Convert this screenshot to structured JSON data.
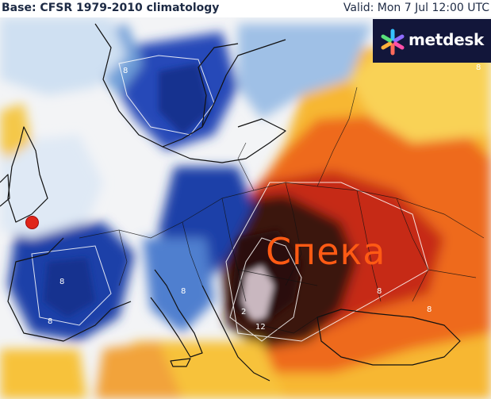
{
  "header": {
    "base_text": "Base: CFSR 1979-2010 climatology",
    "valid_text": "Valid: Mon 7 Jul 12:00 UTC"
  },
  "logo": {
    "brand_text": "metdesk"
  },
  "map": {
    "heat_label": "Спека",
    "contour_labels": [
      {
        "id": "scandinavia-8",
        "text": "8"
      },
      {
        "id": "iberia-8a",
        "text": "8"
      },
      {
        "id": "iberia-8b",
        "text": "8"
      },
      {
        "id": "alps-8",
        "text": "8"
      },
      {
        "id": "balkan-2",
        "text": "2"
      },
      {
        "id": "balkan-12",
        "text": "12"
      },
      {
        "id": "ukraine-8",
        "text": "8"
      },
      {
        "id": "blacksea-8",
        "text": "8"
      },
      {
        "id": "russia-8",
        "text": "8"
      }
    ],
    "colors": {
      "cold": "#1f3fa8",
      "cool": "#6f9fd8",
      "neutral": "#f4f5f6",
      "warm": "#f7c23a",
      "hot": "#ee6a1c",
      "very_hot": "#c62a12",
      "extreme": "#3a1210",
      "marker": "#e0251a",
      "heat_label": "#ff5a14"
    }
  }
}
